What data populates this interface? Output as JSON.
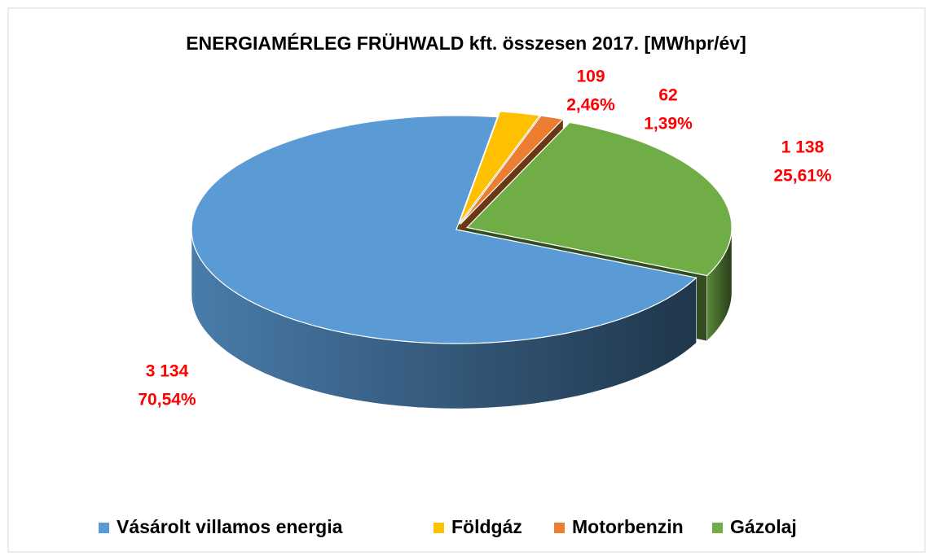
{
  "chart_data": {
    "type": "pie3d",
    "title": "ENERGIAMÉRLEG  FRÜHWALD kft. összesen 2017. [MWhpr/év]",
    "categories": [
      "Vásárolt villamos energia",
      "Földgáz",
      "Motorbenzin",
      "Gázolaj"
    ],
    "values": [
      3134,
      109,
      62,
      1138
    ],
    "value_labels": [
      "3 134",
      "109",
      "62",
      "1 138"
    ],
    "percents": [
      70.54,
      2.46,
      1.39,
      25.61
    ],
    "percent_labels": [
      "70,54%",
      "2,46%",
      "1,39%",
      "25,61%"
    ],
    "colors": [
      "#5b9bd5",
      "#ffc000",
      "#ed7d31",
      "#70ad47"
    ],
    "legend": "bottom"
  }
}
